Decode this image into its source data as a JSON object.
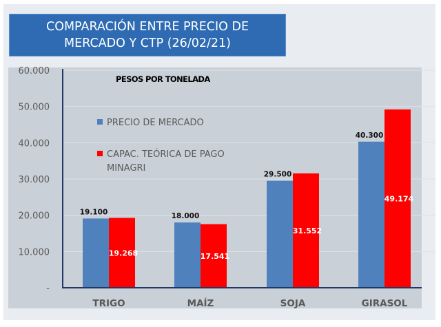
{
  "title_lines": [
    "COMPARACIÓN ENTRE PRECIO DE",
    "MERCADO Y CTP (26/02/21)"
  ],
  "chart_data": {
    "type": "bar",
    "title": "COMPARACIÓN ENTRE PRECIO DE MERCADO Y CTP (26/02/21)",
    "subtitle": "PESOS POR TONELADA",
    "categories": [
      "TRIGO",
      "MAÍZ",
      "SOJA",
      "GIRASOL"
    ],
    "series": [
      {
        "name": "PRECIO DE MERCADO",
        "color": "#4f81bd",
        "values": [
          19100,
          18000,
          29500,
          40300
        ],
        "labels": [
          "19.100",
          "18.000",
          "29.500",
          "40.300"
        ]
      },
      {
        "name": "CAPAC. TEÓRICA DE PAGO MINAGRI",
        "legend_lines": [
          "CAPAC. TEÓRICA DE PAGO",
          "MINAGRI"
        ],
        "color": "#ff0000",
        "values": [
          19268,
          17541,
          31552,
          49174
        ],
        "labels": [
          "19.268",
          "17.541",
          "31.552",
          "49.174"
        ]
      }
    ],
    "ylim": [
      0,
      60000
    ],
    "yticks": [
      0,
      10000,
      20000,
      30000,
      40000,
      50000,
      60000
    ],
    "ytick_labels": [
      "-",
      "10.000",
      "20.000",
      "30.000",
      "40.000",
      "50.000",
      "60.000"
    ],
    "xlabel": "",
    "ylabel": "",
    "grid": true,
    "legend_position": "top-left"
  }
}
